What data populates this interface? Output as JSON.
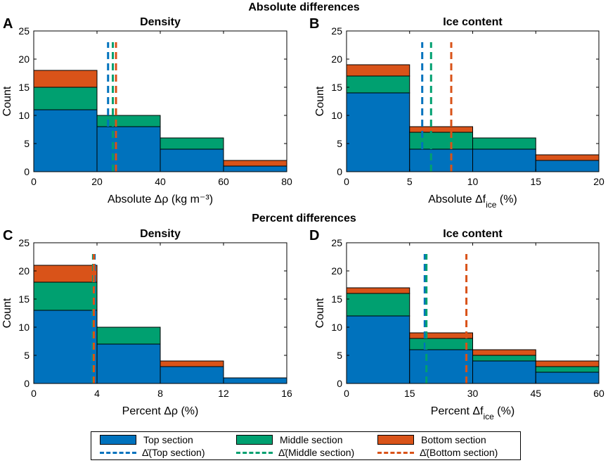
{
  "headings": {
    "absolute": "Absolute differences",
    "percent": "Percent differences"
  },
  "colors": {
    "top": "#0072BD",
    "middle": "#00A070",
    "bottom": "#D95319"
  },
  "legend": {
    "entries": [
      {
        "key": "top",
        "label": "Top section"
      },
      {
        "key": "middle",
        "label": "Middle section"
      },
      {
        "key": "bottom",
        "label": "Bottom section"
      }
    ],
    "mean_entries": [
      {
        "key": "top",
        "symbol": "Δ̄",
        "label": "(Top section)"
      },
      {
        "key": "middle",
        "symbol": "Δ̄",
        "label": "(Middle section)"
      },
      {
        "key": "bottom",
        "symbol": "Δ̄",
        "label": "(Bottom section)"
      }
    ]
  },
  "chart_data": [
    {
      "panel": "A",
      "type": "bar",
      "stacked": true,
      "title": "Density",
      "xlabel": "Absolute Δρ (kg m⁻³)",
      "ylabel": "Count",
      "xlim": [
        0,
        80
      ],
      "ylim": [
        0,
        25
      ],
      "xticks": [
        0,
        20,
        40,
        60,
        80
      ],
      "yticks": [
        0,
        5,
        10,
        15,
        20,
        25
      ],
      "bins": [
        [
          0,
          20
        ],
        [
          20,
          40
        ],
        [
          40,
          60
        ],
        [
          60,
          80
        ]
      ],
      "series": [
        {
          "name": "Top section",
          "key": "top",
          "values": [
            11,
            8,
            4,
            1
          ]
        },
        {
          "name": "Middle section",
          "key": "middle",
          "values": [
            4,
            2,
            2,
            0
          ]
        },
        {
          "name": "Bottom section",
          "key": "bottom",
          "values": [
            3,
            0,
            0,
            1
          ]
        }
      ],
      "means": [
        {
          "key": "top",
          "value": 23.5
        },
        {
          "key": "middle",
          "value": 25.0
        },
        {
          "key": "bottom",
          "value": 26.0
        }
      ]
    },
    {
      "panel": "B",
      "type": "bar",
      "stacked": true,
      "title": "Ice content",
      "xlabel": "Absolute Δf",
      "xlabel_sub": "ice",
      "xlabel_suffix": " (%)",
      "ylabel": "Count",
      "xlim": [
        0,
        20
      ],
      "ylim": [
        0,
        25
      ],
      "xticks": [
        0,
        5,
        10,
        15,
        20
      ],
      "yticks": [
        0,
        5,
        10,
        15,
        20,
        25
      ],
      "bins": [
        [
          0,
          5
        ],
        [
          5,
          10
        ],
        [
          10,
          15
        ],
        [
          15,
          20
        ]
      ],
      "series": [
        {
          "name": "Top section",
          "key": "top",
          "values": [
            14,
            4,
            4,
            2
          ]
        },
        {
          "name": "Middle section",
          "key": "middle",
          "values": [
            3,
            3,
            2,
            0
          ]
        },
        {
          "name": "Bottom section",
          "key": "bottom",
          "values": [
            2,
            1,
            0,
            1
          ]
        }
      ],
      "means": [
        {
          "key": "top",
          "value": 6.0
        },
        {
          "key": "middle",
          "value": 6.7
        },
        {
          "key": "bottom",
          "value": 8.3
        }
      ]
    },
    {
      "panel": "C",
      "type": "bar",
      "stacked": true,
      "title": "Density",
      "xlabel": "Percent Δρ (%)",
      "ylabel": "Count",
      "xlim": [
        0,
        16
      ],
      "ylim": [
        0,
        25
      ],
      "xticks": [
        0,
        4,
        8,
        12,
        16
      ],
      "yticks": [
        0,
        5,
        10,
        15,
        20,
        25
      ],
      "bins": [
        [
          0,
          4
        ],
        [
          4,
          8
        ],
        [
          8,
          12
        ],
        [
          12,
          16
        ]
      ],
      "series": [
        {
          "name": "Top section",
          "key": "top",
          "values": [
            13,
            7,
            3,
            1
          ]
        },
        {
          "name": "Middle section",
          "key": "middle",
          "values": [
            5,
            3,
            0,
            0
          ]
        },
        {
          "name": "Bottom section",
          "key": "bottom",
          "values": [
            3,
            0,
            1,
            0
          ]
        }
      ],
      "means": [
        {
          "key": "top",
          "value": 3.85
        },
        {
          "key": "middle",
          "value": 3.75
        },
        {
          "key": "bottom",
          "value": 3.8
        }
      ]
    },
    {
      "panel": "D",
      "type": "bar",
      "stacked": true,
      "title": "Ice content",
      "xlabel": "Percent Δf",
      "xlabel_sub": "ice",
      "xlabel_suffix": " (%)",
      "ylabel": "Count",
      "xlim": [
        0,
        60
      ],
      "ylim": [
        0,
        25
      ],
      "xticks": [
        0,
        15,
        30,
        45,
        60
      ],
      "yticks": [
        0,
        5,
        10,
        15,
        20,
        25
      ],
      "bins": [
        [
          0,
          15
        ],
        [
          15,
          30
        ],
        [
          30,
          45
        ],
        [
          45,
          60
        ]
      ],
      "series": [
        {
          "name": "Top section",
          "key": "top",
          "values": [
            12,
            6,
            4,
            2
          ]
        },
        {
          "name": "Middle section",
          "key": "middle",
          "values": [
            4,
            2,
            1,
            1
          ]
        },
        {
          "name": "Bottom section",
          "key": "bottom",
          "values": [
            1,
            1,
            1,
            1
          ]
        }
      ],
      "means": [
        {
          "key": "top",
          "value": 18.6
        },
        {
          "key": "middle",
          "value": 19.0
        },
        {
          "key": "bottom",
          "value": 28.5
        }
      ]
    }
  ]
}
